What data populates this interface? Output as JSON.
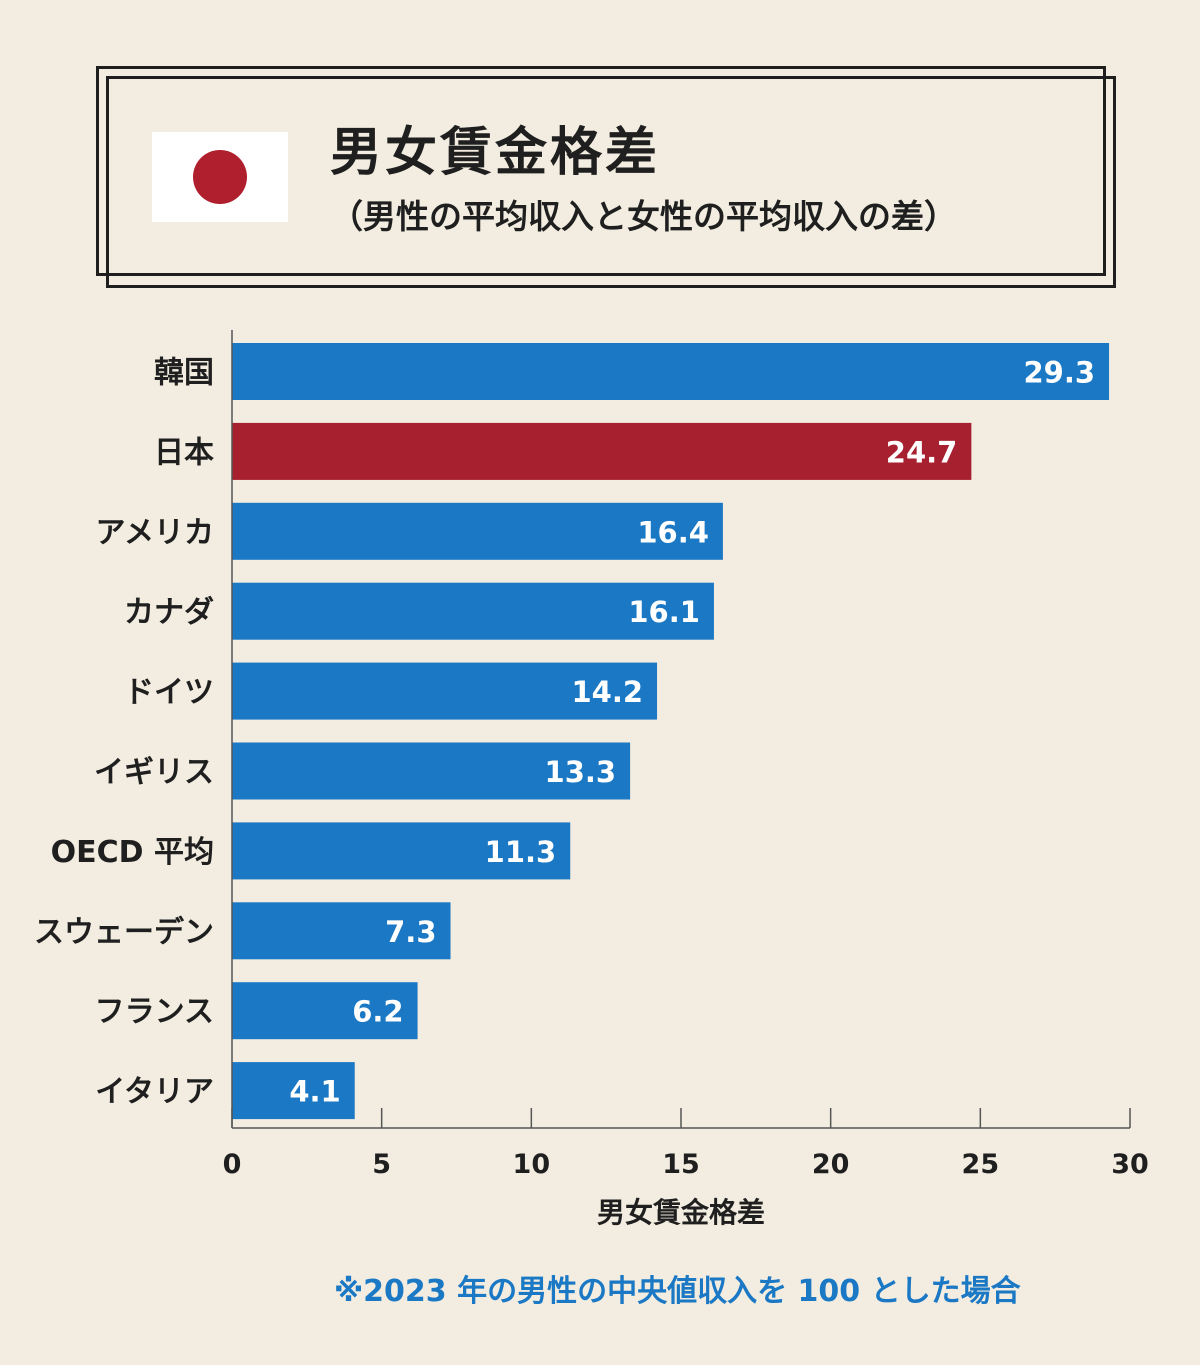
{
  "header": {
    "title": "男女賃金格差",
    "subtitle": "（男性の平均収入と女性の平均収入の差）",
    "flag_icon": "japan-flag-icon"
  },
  "chart_data": {
    "type": "bar",
    "orientation": "horizontal",
    "categories": [
      "韓国",
      "日本",
      "アメリカ",
      "カナダ",
      "ドイツ",
      "イギリス",
      "OECD 平均",
      "スウェーデン",
      "フランス",
      "イタリア"
    ],
    "values": [
      29.3,
      24.7,
      16.4,
      16.1,
      14.2,
      13.3,
      11.3,
      7.3,
      6.2,
      4.1
    ],
    "xlabel": "男女賃金格差",
    "xlim": [
      0,
      30
    ],
    "xticks": [
      0,
      5,
      10,
      15,
      20,
      25,
      30
    ],
    "data_labels": true,
    "grid": false,
    "colors": {
      "default": "#1b78c4",
      "highlight": "#a7202f",
      "highlight_category": "日本",
      "label_text": "#ffffff"
    }
  },
  "note": "※2023 年の男性の中央値収入を 100 とした場合"
}
